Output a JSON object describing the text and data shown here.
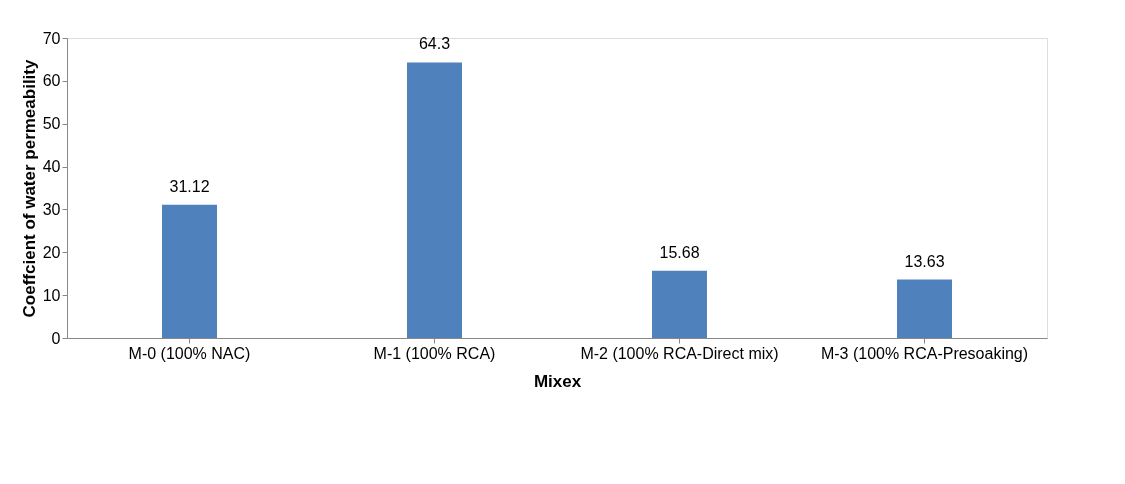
{
  "chart_data": {
    "type": "bar",
    "xlabel": "Mixex",
    "ylabel": "Coeffcient of water permeability",
    "categories": [
      "M-0 (100% NAC)",
      "M-1 (100% RCA)",
      "M-2 (100% RCA-Direct mix)",
      "M-3 (100% RCA-Presoaking)"
    ],
    "values": [
      31.12,
      64.3,
      15.68,
      13.63
    ],
    "color": "#4f81bd",
    "ylim": [
      0,
      70
    ],
    "yticks": [
      0,
      10,
      20,
      30,
      40,
      50,
      60,
      70
    ],
    "grid": false,
    "data_labels": true
  }
}
